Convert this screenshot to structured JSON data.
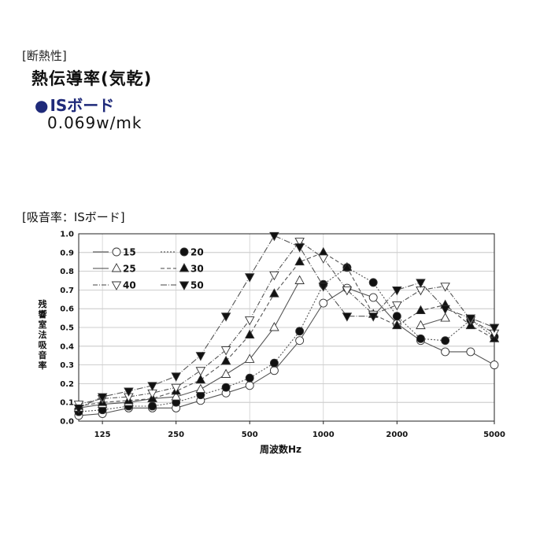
{
  "header": {
    "section": "[断熱性]",
    "title": "熱伝導率(気乾)",
    "product_bullet": "●",
    "product": "ISボード",
    "value": "0.069w/mk"
  },
  "chart_data": {
    "type": "line",
    "title": "[吸音率：ISボード]",
    "xlabel": "周波数Hz",
    "ylabel": "残響室法吸音率",
    "xscale": "log",
    "xlim": [
      100,
      5000
    ],
    "ylim": [
      0,
      1.0
    ],
    "xticks": [
      125,
      250,
      500,
      1000,
      2000,
      5000
    ],
    "xtick_labels": [
      "125",
      "250",
      "500",
      "1000",
      "2000",
      "5000"
    ],
    "yticks": [
      0,
      0.1,
      0.2,
      0.3,
      0.4,
      0.5,
      0.6,
      0.7,
      0.8,
      0.9,
      1.0
    ],
    "ytick_labels": [
      "0.0",
      "0.1",
      "0.2",
      "0.3",
      "0.4",
      "0.5",
      "0.6",
      "0.7",
      "0.8",
      "0.9",
      "1.0"
    ],
    "x": [
      100,
      125,
      160,
      200,
      250,
      315,
      400,
      500,
      630,
      800,
      1000,
      1250,
      1600,
      2000,
      2500,
      3150,
      4000,
      5000
    ],
    "legend_position": "top-left",
    "series": [
      {
        "name": "15",
        "marker": "circle-open",
        "dash": "none",
        "values": [
          0.03,
          0.04,
          0.07,
          0.07,
          0.07,
          0.11,
          0.15,
          0.19,
          0.27,
          0.43,
          0.63,
          0.71,
          0.66,
          0.52,
          0.43,
          0.37,
          0.37,
          0.3
        ]
      },
      {
        "name": "20",
        "marker": "circle-filled",
        "dash": "2,2",
        "values": [
          0.05,
          0.06,
          0.08,
          0.08,
          0.1,
          0.14,
          0.18,
          0.23,
          0.31,
          0.48,
          0.73,
          0.82,
          0.74,
          0.56,
          0.44,
          0.43,
          0.54,
          0.45
        ]
      },
      {
        "name": "25",
        "marker": "triangle-up-open",
        "dash": "none",
        "values": [
          0.07,
          0.09,
          0.1,
          0.12,
          0.13,
          0.17,
          0.25,
          0.33,
          0.5,
          0.75,
          null,
          null,
          null,
          null,
          0.51,
          0.55,
          null,
          null
        ]
      },
      {
        "name": "30",
        "marker": "triangle-up-filled",
        "dash": "5,3",
        "values": [
          0.08,
          0.1,
          0.11,
          0.12,
          0.16,
          0.22,
          0.32,
          0.46,
          0.68,
          0.85,
          0.9,
          0.82,
          0.57,
          0.51,
          0.59,
          0.62,
          0.51,
          0.44
        ]
      },
      {
        "name": "40",
        "marker": "triangle-down-open",
        "dash": "6,2,1,2",
        "values": [
          0.09,
          0.12,
          0.13,
          0.15,
          0.18,
          0.27,
          0.38,
          0.54,
          0.78,
          0.96,
          0.87,
          0.7,
          0.57,
          0.62,
          0.7,
          0.72,
          0.54,
          0.47
        ]
      },
      {
        "name": "50",
        "marker": "triangle-down-filled",
        "dash": "8,2,1,2",
        "values": [
          0.07,
          0.13,
          0.16,
          0.19,
          0.24,
          0.35,
          0.56,
          0.77,
          0.99,
          0.93,
          0.72,
          0.56,
          0.56,
          0.7,
          0.74,
          0.6,
          0.55,
          0.5
        ]
      }
    ]
  }
}
